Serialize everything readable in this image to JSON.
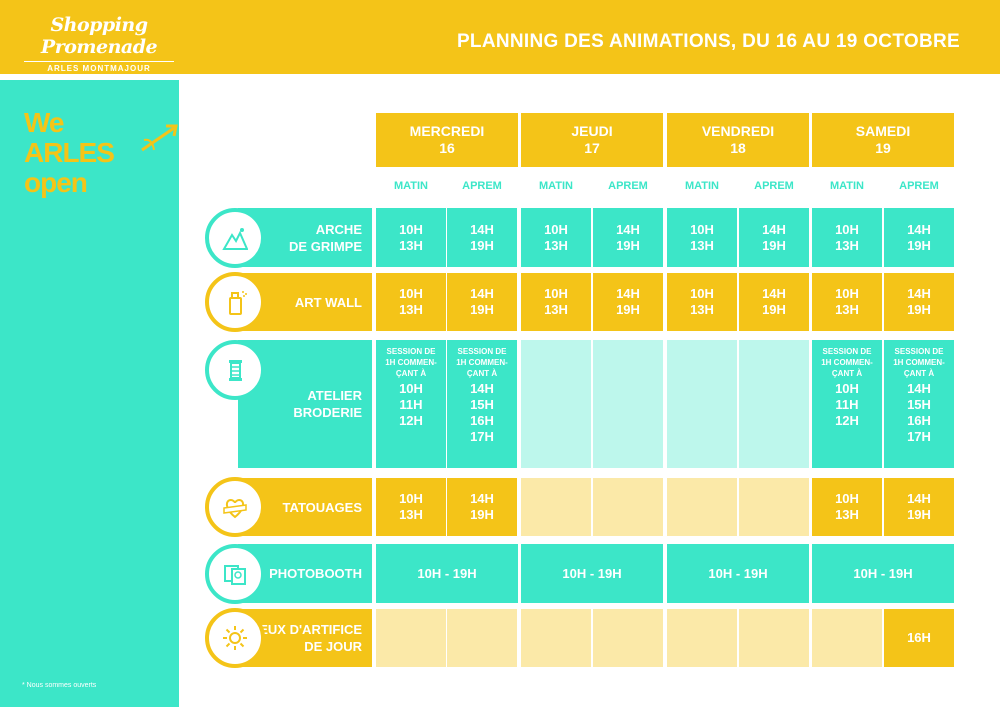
{
  "header": {
    "logo_text": "Shopping Promenade",
    "logo_subtext": "ARLES MONTMAJOUR",
    "title": "PLANNING DES ANIMATIONS, DU 16 AU 19 OCTOBRE"
  },
  "sidebar": {
    "brand_line1": "We",
    "brand_line2": "ARLES",
    "brand_line3": "open",
    "brand_mark": "*",
    "footnote": "* Nous sommes ouverts"
  },
  "colors": {
    "yellow": "#f4c418",
    "teal": "#3ce6c8",
    "pale_teal": "#bdf7ec",
    "pale_yellow": "#fbe9a8"
  },
  "days": [
    {
      "name": "MERCREDI",
      "date": "16"
    },
    {
      "name": "JEUDI",
      "date": "17"
    },
    {
      "name": "VENDREDI",
      "date": "18"
    },
    {
      "name": "SAMEDI",
      "date": "19"
    }
  ],
  "slots": [
    "MATIN",
    "APREM",
    "MATIN",
    "APREM",
    "MATIN",
    "APREM",
    "MATIN",
    "APREM"
  ],
  "activities": [
    {
      "label": "ARCHE\nDE GRIMPE",
      "icon": "mountain-icon",
      "cells": [
        "10H\n13H",
        "14H\n19H",
        "10H\n13H",
        "14H\n19H",
        "10H\n13H",
        "14H\n19H",
        "10H\n13H",
        "14H\n19H"
      ]
    },
    {
      "label": "ART WALL",
      "icon": "spray-can-icon",
      "cells": [
        "10H\n13H",
        "14H\n19H",
        "10H\n13H",
        "14H\n19H",
        "10H\n13H",
        "14H\n19H",
        "10H\n13H",
        "14H\n19H"
      ]
    },
    {
      "label": "ATELIER BRODERIE",
      "icon": "thread-spool-icon",
      "session_note": "SESSION DE\n1H COMMEN-\nÇANT À",
      "cells": [
        "10H\n11H\n12H",
        "14H\n15H\n16H\n17H",
        "",
        "",
        "",
        "",
        "10H\n11H\n12H",
        "14H\n15H\n16H\n17H"
      ]
    },
    {
      "label": "TATOUAGES",
      "icon": "heart-banner-icon",
      "cells": [
        "10H\n13H",
        "14H\n19H",
        "",
        "",
        "",
        "",
        "10H\n13H",
        "14H\n19H"
      ]
    },
    {
      "label": "PHOTOBOOTH",
      "icon": "photos-icon",
      "cells": [
        "10H - 19H",
        "10H - 19H",
        "10H - 19H",
        "10H - 19H"
      ]
    },
    {
      "label": "FEUX D'ARTIFICE\nDE JOUR",
      "icon": "sun-firework-icon",
      "cells": [
        "",
        "",
        "",
        "",
        "",
        "",
        "",
        "16H"
      ]
    }
  ]
}
